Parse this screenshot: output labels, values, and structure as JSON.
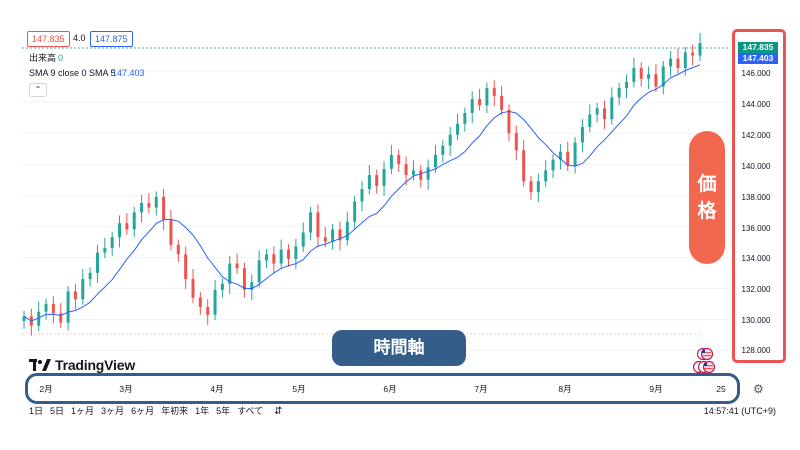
{
  "header": {
    "bid_price": "147.835",
    "spread": "4.0",
    "ask_price": "147.875",
    "volume_label": "出来高",
    "volume_value": "0",
    "sma_label": "SMA 9 close 0 SMA 5",
    "sma_value": "147.403",
    "collapse_glyph": "⌃"
  },
  "price_axis": {
    "labels": [
      "146.000",
      "144.000",
      "142.000",
      "140.000",
      "138.000",
      "136.000",
      "134.000",
      "132.000",
      "130.000",
      "128.000"
    ],
    "current_price": "147.835",
    "sma_price": "147.403"
  },
  "time_axis": {
    "labels": [
      "2月",
      "3月",
      "4月",
      "5月",
      "6月",
      "7月",
      "8月",
      "9月",
      "25"
    ]
  },
  "callouts": {
    "price_chars": [
      "価",
      "格"
    ],
    "time_axis": "時間軸"
  },
  "brand": {
    "logo_mark": "17",
    "name": "TradingView"
  },
  "bottom_bar": {
    "ranges": [
      "1日",
      "5日",
      "1ヶ月",
      "3ヶ月",
      "6ヶ月",
      "年初来",
      "1年",
      "5年",
      "すべて"
    ],
    "clock": "14:57:41 (UTC+9)"
  },
  "colors": {
    "up": "#26a69a",
    "down": "#ef5350",
    "sma": "#2962ff",
    "orange": "#f2684f",
    "navy": "#345d8a",
    "current_green": "#089981"
  },
  "chart_data": {
    "type": "candlestick",
    "symbol_note": "USD/JPY daily",
    "ylim": [
      127,
      148
    ],
    "x_months": [
      "2月",
      "3月",
      "4月",
      "5月",
      "6月",
      "7月",
      "8月",
      "9月"
    ],
    "series": [
      {
        "name": "price",
        "close_path": [
          130.2,
          129.6,
          130.5,
          131.0,
          130.4,
          129.8,
          131.8,
          131.3,
          132.6,
          133.0,
          134.3,
          134.6,
          135.3,
          136.2,
          135.8,
          136.9,
          137.5,
          137.2,
          137.9,
          136.4,
          134.8,
          134.2,
          132.6,
          131.4,
          130.8,
          130.3,
          131.9,
          132.3,
          133.6,
          133.3,
          131.9,
          132.4,
          133.8,
          134.2,
          133.6,
          134.5,
          133.9,
          134.7,
          135.6,
          136.9,
          135.3,
          135.0,
          135.8,
          135.1,
          136.3,
          137.6,
          138.4,
          139.3,
          138.6,
          139.7,
          140.6,
          140.0,
          139.3,
          139.6,
          139.0,
          139.8,
          140.6,
          141.2,
          141.9,
          142.6,
          143.3,
          144.2,
          143.8,
          144.9,
          144.4,
          143.5,
          142.0,
          140.9,
          138.9,
          138.2,
          138.9,
          139.6,
          140.3,
          140.8,
          139.9,
          141.4,
          142.4,
          143.2,
          143.6,
          142.9,
          144.3,
          144.9,
          145.3,
          146.2,
          145.5,
          145.8,
          145.0,
          146.3,
          146.8,
          146.2,
          147.2,
          147.0,
          147.8
        ]
      },
      {
        "name": "SMA 9 close 0 SMA 5",
        "last_value": 147.403
      }
    ]
  }
}
